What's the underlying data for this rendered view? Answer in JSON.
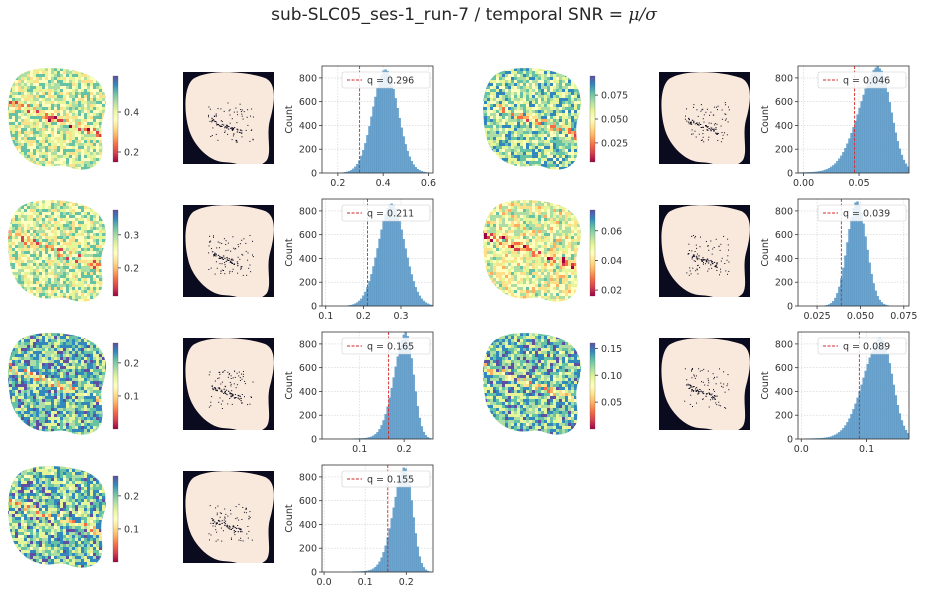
{
  "figure": {
    "title_text": "sub-SLC05_ses-1_run-7 / temporal SNR = ",
    "title_math": "μ/σ"
  },
  "colors": {
    "hist_fill": "#6ba5cf",
    "hist_edge": "#4f8ab8",
    "qline": "#d62728",
    "mask_bg": "#0b0b1f",
    "mask_fg": "#f9e9dc",
    "colormap": "Spectral"
  },
  "chart_data": [
    {
      "type": "histogram",
      "panel": "row1-left",
      "colorbar_ticks": [
        "0.2",
        "0.4"
      ],
      "colorbar_range": [
        0.15,
        0.58
      ],
      "ylabel": "Count",
      "xlim": [
        0.13,
        0.62
      ],
      "xticks": [
        "0.2",
        "0.4",
        "0.6"
      ],
      "xtick_values": [
        0.2,
        0.4,
        0.6
      ],
      "ylim": [
        0,
        900
      ],
      "yticks": [
        "0",
        "200",
        "400",
        "600",
        "800"
      ],
      "ytick_values": [
        0,
        200,
        400,
        600,
        800
      ],
      "q_label": "q = 0.296",
      "q": 0.296,
      "dist": {
        "mean": 0.41,
        "sd": 0.056,
        "peak": 870,
        "skew": 0
      }
    },
    {
      "type": "histogram",
      "panel": "row1-right",
      "colorbar_ticks": [
        "0.025",
        "0.050",
        "0.075"
      ],
      "colorbar_range": [
        0.005,
        0.095
      ],
      "ylabel": "Count",
      "xlim": [
        -0.005,
        0.095
      ],
      "xticks": [
        "0.00",
        "0.05"
      ],
      "xtick_values": [
        0.0,
        0.05
      ],
      "ylim": [
        0,
        900
      ],
      "yticks": [
        "0",
        "200",
        "400",
        "600",
        "800"
      ],
      "ytick_values": [
        0,
        200,
        400,
        600,
        800
      ],
      "q_label": "q = 0.046",
      "q": 0.046,
      "dist": {
        "mean": 0.068,
        "sd": 0.011,
        "peak": 880,
        "skew": -1
      }
    },
    {
      "type": "histogram",
      "panel": "row2-left",
      "colorbar_ticks": [
        "0.2",
        "0.3"
      ],
      "colorbar_range": [
        0.115,
        0.375
      ],
      "ylabel": "Count",
      "xlim": [
        0.09,
        0.385
      ],
      "xticks": [
        "0.1",
        "0.2",
        "0.3"
      ],
      "xtick_values": [
        0.1,
        0.2,
        0.3
      ],
      "ylim": [
        0,
        900
      ],
      "yticks": [
        "0",
        "200",
        "400",
        "600",
        "800"
      ],
      "ytick_values": [
        0,
        200,
        400,
        600,
        800
      ],
      "q_label": "q = 0.211",
      "q": 0.211,
      "dist": {
        "mean": 0.275,
        "sd": 0.035,
        "peak": 860,
        "skew": 0
      }
    },
    {
      "type": "histogram",
      "panel": "row2-right",
      "colorbar_ticks": [
        "0.02",
        "0.04",
        "0.06"
      ],
      "colorbar_range": [
        0.016,
        0.074
      ],
      "ylabel": "Count",
      "xlim": [
        0.014,
        0.078
      ],
      "xticks": [
        "0.025",
        "0.050",
        "0.075"
      ],
      "xtick_values": [
        0.025,
        0.05,
        0.075
      ],
      "ylim": [
        0,
        900
      ],
      "yticks": [
        "0",
        "200",
        "400",
        "600",
        "800"
      ],
      "ytick_values": [
        0,
        200,
        400,
        600,
        800
      ],
      "q_label": "q = 0.039",
      "q": 0.039,
      "dist": {
        "mean": 0.048,
        "sd": 0.0055,
        "peak": 880,
        "skew": 0
      }
    },
    {
      "type": "histogram",
      "panel": "row3-left",
      "colorbar_ticks": [
        "0.1",
        "0.2"
      ],
      "colorbar_range": [
        0.0,
        0.26
      ],
      "ylabel": "Count",
      "xlim": [
        0.015,
        0.265
      ],
      "xticks": [
        "0.1",
        "0.2"
      ],
      "xtick_values": [
        0.1,
        0.2
      ],
      "ylim": [
        0,
        900
      ],
      "yticks": [
        "0",
        "200",
        "400",
        "600",
        "800"
      ],
      "ytick_values": [
        0,
        200,
        400,
        600,
        800
      ],
      "q_label": "q = 0.165",
      "q": 0.165,
      "dist": {
        "mean": 0.205,
        "sd": 0.017,
        "peak": 880,
        "skew": -1
      }
    },
    {
      "type": "histogram",
      "panel": "row3-right",
      "colorbar_ticks": [
        "0.05",
        "0.10",
        "0.15"
      ],
      "colorbar_range": [
        0.0,
        0.16
      ],
      "ylabel": "Count",
      "xlim": [
        -0.005,
        0.165
      ],
      "xticks": [
        "0.0",
        "0.1"
      ],
      "xtick_values": [
        0.0,
        0.1
      ],
      "ylim": [
        0,
        900
      ],
      "yticks": [
        "0",
        "200",
        "400",
        "600",
        "800"
      ],
      "ytick_values": [
        0,
        200,
        400,
        600,
        800
      ],
      "q_label": "q = 0.089",
      "q": 0.089,
      "dist": {
        "mean": 0.123,
        "sd": 0.017,
        "peak": 840,
        "skew": -1
      }
    },
    {
      "type": "histogram",
      "panel": "row4-left",
      "colorbar_ticks": [
        "0.1",
        "0.2"
      ],
      "colorbar_range": [
        0.0,
        0.26
      ],
      "ylabel": "Count",
      "xlim": [
        -0.005,
        0.265
      ],
      "xticks": [
        "0.0",
        "0.1",
        "0.2"
      ],
      "xtick_values": [
        0.0,
        0.1,
        0.2
      ],
      "ylim": [
        0,
        900
      ],
      "yticks": [
        "0",
        "200",
        "400",
        "600",
        "800"
      ],
      "ytick_values": [
        0,
        200,
        400,
        600,
        800
      ],
      "q_label": "q = 0.155",
      "q": 0.155,
      "dist": {
        "mean": 0.198,
        "sd": 0.018,
        "peak": 870,
        "skew": -1
      }
    }
  ]
}
